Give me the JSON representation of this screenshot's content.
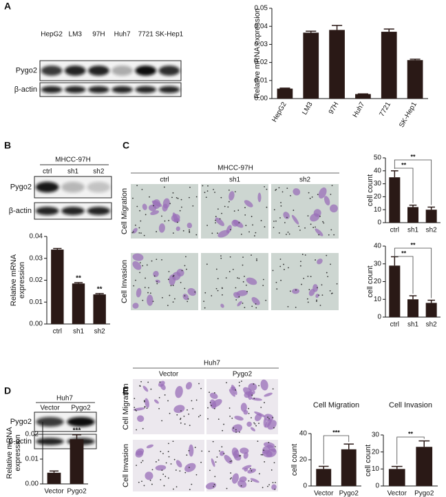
{
  "panel_labels": [
    "A",
    "B",
    "C",
    "D",
    "E"
  ],
  "blots": [
    {
      "lanes": [
        "HepG2",
        "LM3",
        "97H",
        "Huh7",
        "7721",
        "SK-Hep1"
      ],
      "rows": [
        "Pygo2",
        "β-actin"
      ]
    },
    {
      "title": "MHCC-97H",
      "lanes": [
        "ctrl",
        "sh1",
        "sh2"
      ],
      "rows": [
        "Pygo2",
        "β-actin"
      ]
    },
    {
      "title": "Huh7",
      "lanes": [
        "Vector",
        "Pygo2"
      ],
      "rows": [
        "Pygo2",
        "β-actin"
      ]
    }
  ],
  "micrographs": [
    {
      "title": "MHCC-97H",
      "columns": [
        "ctrl",
        "sh1",
        "sh2"
      ],
      "rows": [
        "Cell Migration",
        "Cell Invasion"
      ]
    },
    {
      "title": "Huh7",
      "columns": [
        "Vector",
        "Pygo2"
      ],
      "rows": [
        "Cell Migration",
        "Cell Invasion"
      ]
    }
  ],
  "chart_data": [
    {
      "type": "bar",
      "ylabel": "Relative mRNA expression",
      "color": "#2a1916",
      "categories": [
        "HepG2",
        "LM3",
        "97H",
        "Huh7",
        "7721",
        "SK-Hep1"
      ],
      "values": [
        0.0055,
        0.0365,
        0.038,
        0.0025,
        0.037,
        0.0213
      ],
      "errors": [
        0.0003,
        0.0008,
        0.0025,
        0.0001,
        0.0015,
        0.0005
      ],
      "ylim": [
        0,
        0.05
      ],
      "yticks": [
        {
          "value": 0,
          "label": "0.00"
        },
        {
          "value": 0.01,
          "label": "0.01"
        },
        {
          "value": 0.02,
          "label": "0.02"
        },
        {
          "value": 0.03,
          "label": "0.03"
        },
        {
          "value": 0.04,
          "label": "0.04"
        },
        {
          "value": 0.05,
          "label": "0.05"
        }
      ]
    },
    {
      "type": "bar",
      "ylabel": [
        "Relative mRNA",
        "expression"
      ],
      "color": "#2a1916",
      "categories": [
        "ctrl",
        "sh1",
        "sh2"
      ],
      "values": [
        0.034,
        0.0185,
        0.0135
      ],
      "errors": [
        0.0005,
        0.0004,
        0.0004
      ],
      "significance": [
        null,
        "**",
        "**"
      ],
      "ylim": [
        0,
        0.04
      ],
      "yticks": [
        {
          "value": 0,
          "label": "0.00"
        },
        {
          "value": 0.01,
          "label": "0.01"
        },
        {
          "value": 0.02,
          "label": "0.02"
        },
        {
          "value": 0.03,
          "label": "0.03"
        },
        {
          "value": 0.04,
          "label": "0.04"
        }
      ]
    },
    {
      "type": "bar",
      "ylabel": "cell count",
      "color": "#2a1916",
      "categories": [
        "ctrl",
        "sh1",
        "sh2"
      ],
      "values": [
        35,
        12,
        10
      ],
      "errors": [
        5,
        1.5,
        2
      ],
      "comparisons": [
        {
          "from": "ctrl",
          "to": "sh1",
          "label": "**"
        },
        {
          "from": "ctrl",
          "to": "sh2",
          "label": "**"
        }
      ],
      "ylim": [
        0,
        50
      ],
      "yticks": [
        0,
        10,
        20,
        30,
        40,
        50
      ]
    },
    {
      "type": "bar",
      "ylabel": "cell count",
      "color": "#2a1916",
      "categories": [
        "ctrl",
        "sh1",
        "sh2"
      ],
      "values": [
        29,
        10,
        8
      ],
      "errors": [
        5,
        2,
        1.5
      ],
      "comparisons": [
        {
          "from": "ctrl",
          "to": "sh1",
          "label": "**"
        },
        {
          "from": "ctrl",
          "to": "sh2",
          "label": "**"
        }
      ],
      "ylim": [
        0,
        40
      ],
      "yticks": [
        0,
        10,
        20,
        30,
        40
      ]
    },
    {
      "type": "bar",
      "ylabel": [
        "Relative mRNA",
        "expression"
      ],
      "color": "#2a1916",
      "categories": [
        "Vector",
        "Pygo2"
      ],
      "values": [
        0.0045,
        0.018
      ],
      "errors": [
        0.0007,
        0.0018
      ],
      "significance": [
        null,
        "***"
      ],
      "ylim": [
        0,
        0.025
      ],
      "yticks": [
        {
          "value": 0,
          "label": "0.00"
        },
        {
          "value": 0.01,
          "label": "0.01"
        },
        {
          "value": 0.02,
          "label": "0.02"
        }
      ]
    },
    {
      "type": "bar",
      "title": "Cell Migration",
      "ylabel": "cell count",
      "color": "#2a1916",
      "categories": [
        "Vector",
        "Pygo2"
      ],
      "values": [
        13,
        28
      ],
      "errors": [
        2,
        4
      ],
      "comparisons": [
        {
          "from": "Vector",
          "to": "Pygo2",
          "label": "***"
        }
      ],
      "ylim": [
        0,
        40
      ],
      "yticks": [
        0,
        20,
        40
      ]
    },
    {
      "type": "bar",
      "title": "Cell Invasion",
      "ylabel": "cell count",
      "color": "#2a1916",
      "categories": [
        "Vector",
        "Pygo2"
      ],
      "values": [
        10,
        23
      ],
      "errors": [
        1.5,
        3.5
      ],
      "comparisons": [
        {
          "from": "Vector",
          "to": "Pygo2",
          "label": "**"
        }
      ],
      "ylim": [
        0,
        30
      ],
      "yticks": [
        0,
        10,
        20,
        30
      ]
    }
  ]
}
